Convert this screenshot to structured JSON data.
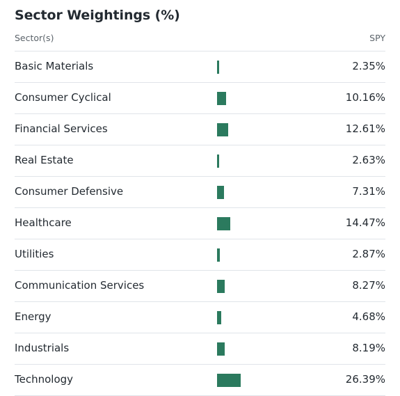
{
  "title": "Sector Weightings (%)",
  "columns": {
    "sector": "Sector(s)",
    "fund": "SPY"
  },
  "colors": {
    "bar": "#2b7a5e",
    "divider": "#e0e4e9",
    "text": "#232a31",
    "muted_text": "#5b636a"
  },
  "sectors": [
    {
      "name": "Basic Materials",
      "value": "2.35%",
      "weight": 2.35
    },
    {
      "name": "Consumer Cyclical",
      "value": "10.16%",
      "weight": 10.16
    },
    {
      "name": "Financial Services",
      "value": "12.61%",
      "weight": 12.61
    },
    {
      "name": "Real Estate",
      "value": "2.63%",
      "weight": 2.63
    },
    {
      "name": "Consumer Defensive",
      "value": "7.31%",
      "weight": 7.31
    },
    {
      "name": "Healthcare",
      "value": "14.47%",
      "weight": 14.47
    },
    {
      "name": "Utilities",
      "value": "2.87%",
      "weight": 2.87
    },
    {
      "name": "Communication Services",
      "value": "8.27%",
      "weight": 8.27
    },
    {
      "name": "Energy",
      "value": "4.68%",
      "weight": 4.68
    },
    {
      "name": "Industrials",
      "value": "8.19%",
      "weight": 8.19
    },
    {
      "name": "Technology",
      "value": "26.39%",
      "weight": 26.39
    }
  ]
}
